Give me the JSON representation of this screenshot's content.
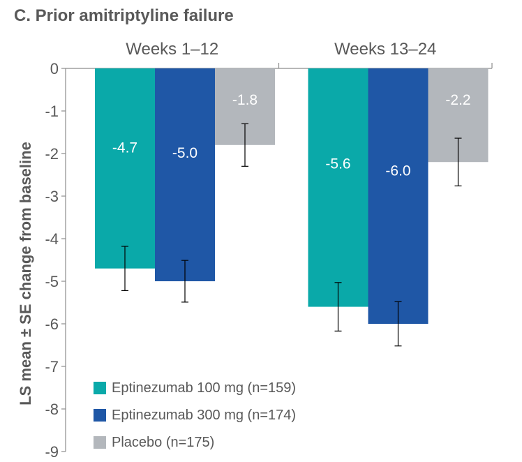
{
  "chart_data": {
    "type": "bar",
    "title": "C.  Prior amitriptyline failure",
    "ylabel": "LS mean ± SE change from baseline",
    "categories": [
      "Weeks 1–12",
      "Weeks 13–24"
    ],
    "ylim": [
      -9,
      0
    ],
    "yticks": [
      0,
      -1,
      -2,
      -3,
      -4,
      -5,
      -6,
      -7,
      -8,
      -9
    ],
    "series": [
      {
        "name": "Eptinezumab 100 mg (n=159)",
        "color": "#0aa9a9",
        "values": [
          -4.7,
          -5.6
        ],
        "labels": [
          "-4.7",
          "-5.6"
        ],
        "se": [
          0.52,
          0.57
        ]
      },
      {
        "name": "Eptinezumab 300 mg (n=174)",
        "color": "#1f57a6",
        "values": [
          -5.0,
          -6.0
        ],
        "labels": [
          "-5.0",
          "-6.0"
        ],
        "se": [
          0.49,
          0.52
        ]
      },
      {
        "name": "Placebo (n=175)",
        "color": "#b3b7bc",
        "values": [
          -1.8,
          -2.2
        ],
        "labels": [
          "-1.8",
          "-2.2"
        ],
        "se": [
          0.5,
          0.56
        ]
      }
    ],
    "legend_position": "bottom-left",
    "grid": false
  }
}
